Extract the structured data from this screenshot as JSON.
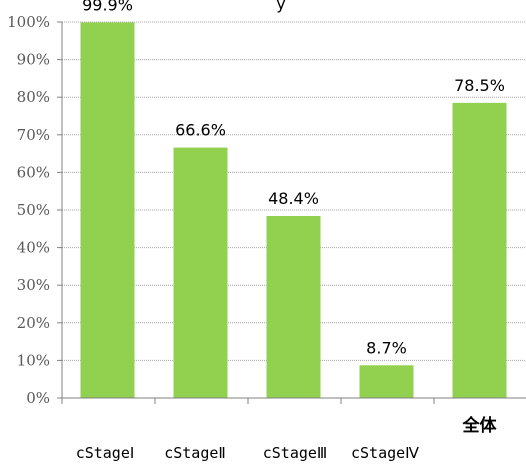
{
  "chart_data": {
    "type": "bar",
    "title_fragment": "y",
    "categories": [
      "cStageⅠ",
      "cStageⅡ",
      "cStageⅢ",
      "cStageⅣ",
      "全体"
    ],
    "values": [
      99.9,
      66.6,
      48.4,
      8.7,
      78.5
    ],
    "data_labels": [
      "99.9%",
      "66.6%",
      "48.4%",
      "8.7%",
      "78.5%"
    ],
    "y_ticks": [
      "0%",
      "10%",
      "20%",
      "30%",
      "40%",
      "50%",
      "60%",
      "70%",
      "80%",
      "90%",
      "100%"
    ],
    "ylim": [
      0,
      100
    ],
    "grid": true,
    "legend": "none",
    "bar_color": "#92d050",
    "grid_color": "#a6a6a6",
    "axis_color": "#808080"
  }
}
